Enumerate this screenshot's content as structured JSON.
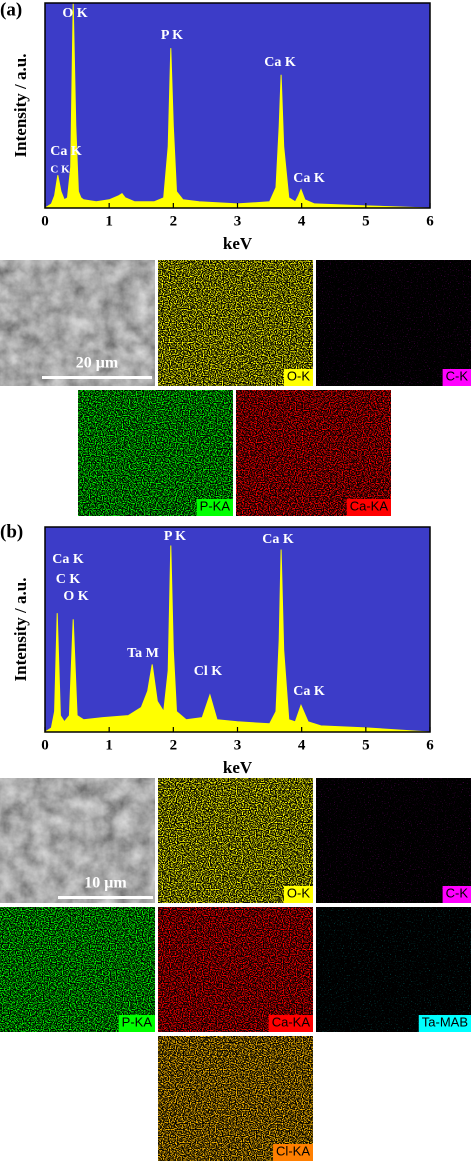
{
  "chart_data": [
    {
      "type": "area",
      "panel_label": "(a)",
      "xlabel": "keV",
      "ylabel": "Intensity / a.u.",
      "background": "#3c3cc8",
      "x": [
        0,
        0.1,
        0.15,
        0.2,
        0.25,
        0.3,
        0.35,
        0.4,
        0.44,
        0.48,
        0.52,
        0.56,
        0.6,
        0.8,
        1.0,
        1.15,
        1.2,
        1.25,
        1.4,
        1.7,
        1.85,
        1.92,
        1.96,
        2.0,
        2.05,
        2.15,
        2.4,
        3.0,
        3.5,
        3.6,
        3.65,
        3.68,
        3.72,
        3.8,
        3.9,
        3.95,
        3.99,
        4.05,
        4.2,
        5,
        6
      ],
      "values": [
        0,
        2,
        6,
        16,
        8,
        4,
        5,
        20,
        100,
        40,
        8,
        5,
        4,
        3,
        4,
        6,
        7,
        5,
        3,
        3,
        5,
        30,
        78,
        40,
        8,
        4,
        3,
        2,
        3,
        10,
        40,
        65,
        30,
        5,
        3,
        6,
        9,
        4,
        2,
        1,
        0
      ],
      "color": "#ffff00",
      "xlim": [
        0,
        6
      ],
      "xticks": [
        0,
        1,
        2,
        3,
        4,
        5,
        6
      ],
      "ylim": [
        0,
        100
      ],
      "annotations": [
        "O K",
        "P K",
        "Ca K",
        "Ca K",
        "C K",
        "Ca K"
      ]
    },
    {
      "type": "area",
      "panel_label": "(b)",
      "xlabel": "keV",
      "ylabel": "Intensity / a.u.",
      "background": "#3c3cc8",
      "x": [
        0,
        0.1,
        0.15,
        0.19,
        0.24,
        0.3,
        0.38,
        0.44,
        0.5,
        0.6,
        0.9,
        1.3,
        1.5,
        1.6,
        1.67,
        1.75,
        1.85,
        1.92,
        1.96,
        2.0,
        2.05,
        2.2,
        2.45,
        2.57,
        2.68,
        3.0,
        3.5,
        3.6,
        3.65,
        3.68,
        3.72,
        3.8,
        3.9,
        3.99,
        4.1,
        4.3,
        5,
        6
      ],
      "values": [
        0,
        2,
        10,
        58,
        8,
        5,
        8,
        55,
        8,
        6,
        7,
        8,
        12,
        20,
        33,
        15,
        10,
        30,
        91,
        40,
        10,
        6,
        7,
        18,
        6,
        5,
        4,
        10,
        45,
        89,
        40,
        6,
        5,
        13,
        5,
        3,
        2,
        0
      ],
      "color": "#ffff00",
      "xlim": [
        0,
        6
      ],
      "xticks": [
        0,
        1,
        2,
        3,
        4,
        5,
        6
      ],
      "ylim": [
        0,
        100
      ],
      "annotations": [
        "Ca K",
        "C K",
        "O K",
        "P K",
        "Ca K",
        "Ta M",
        "Cl K",
        "Ca K"
      ]
    }
  ],
  "element_maps": [
    {
      "scale_bar": "20 μm",
      "labels": [
        {
          "text": "O-K",
          "color": "#ffff00"
        },
        {
          "text": "C-K",
          "color": "#ff00ff"
        },
        {
          "text": "P-KA",
          "color": "#00ff00"
        },
        {
          "text": "Ca-KA",
          "color": "#ff0000"
        }
      ]
    },
    {
      "scale_bar": "10 μm",
      "labels": [
        {
          "text": "O-K",
          "color": "#ffff00"
        },
        {
          "text": "C-K",
          "color": "#ff00ff"
        },
        {
          "text": "P-KA",
          "color": "#00ff00"
        },
        {
          "text": "Ca-KA",
          "color": "#ff0000"
        },
        {
          "text": "Ta-MAB",
          "color": "#00ffff"
        },
        {
          "text": "Cl-KA",
          "color": "#ff7f00"
        }
      ]
    }
  ]
}
